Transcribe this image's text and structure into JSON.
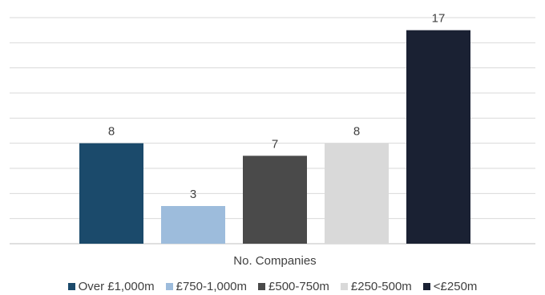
{
  "chart_data": {
    "type": "bar",
    "title": "",
    "xlabel": "",
    "ylabel": "",
    "ylim": [
      0,
      18
    ],
    "grid": true,
    "legend_position": "bottom",
    "categories": [
      "No. Companies"
    ],
    "series": [
      {
        "name": "Over £1,000m",
        "values": [
          8
        ],
        "color": "#1b4a6b"
      },
      {
        "name": "£750-1,000m",
        "values": [
          3
        ],
        "color": "#9dbcdc"
      },
      {
        "name": "£500-750m",
        "values": [
          7
        ],
        "color": "#4a4a4a"
      },
      {
        "name": "£250-500m",
        "values": [
          8
        ],
        "color": "#d9d9d9"
      },
      {
        "name": "<£250m",
        "values": [
          17
        ],
        "color": "#1a2133"
      }
    ]
  }
}
